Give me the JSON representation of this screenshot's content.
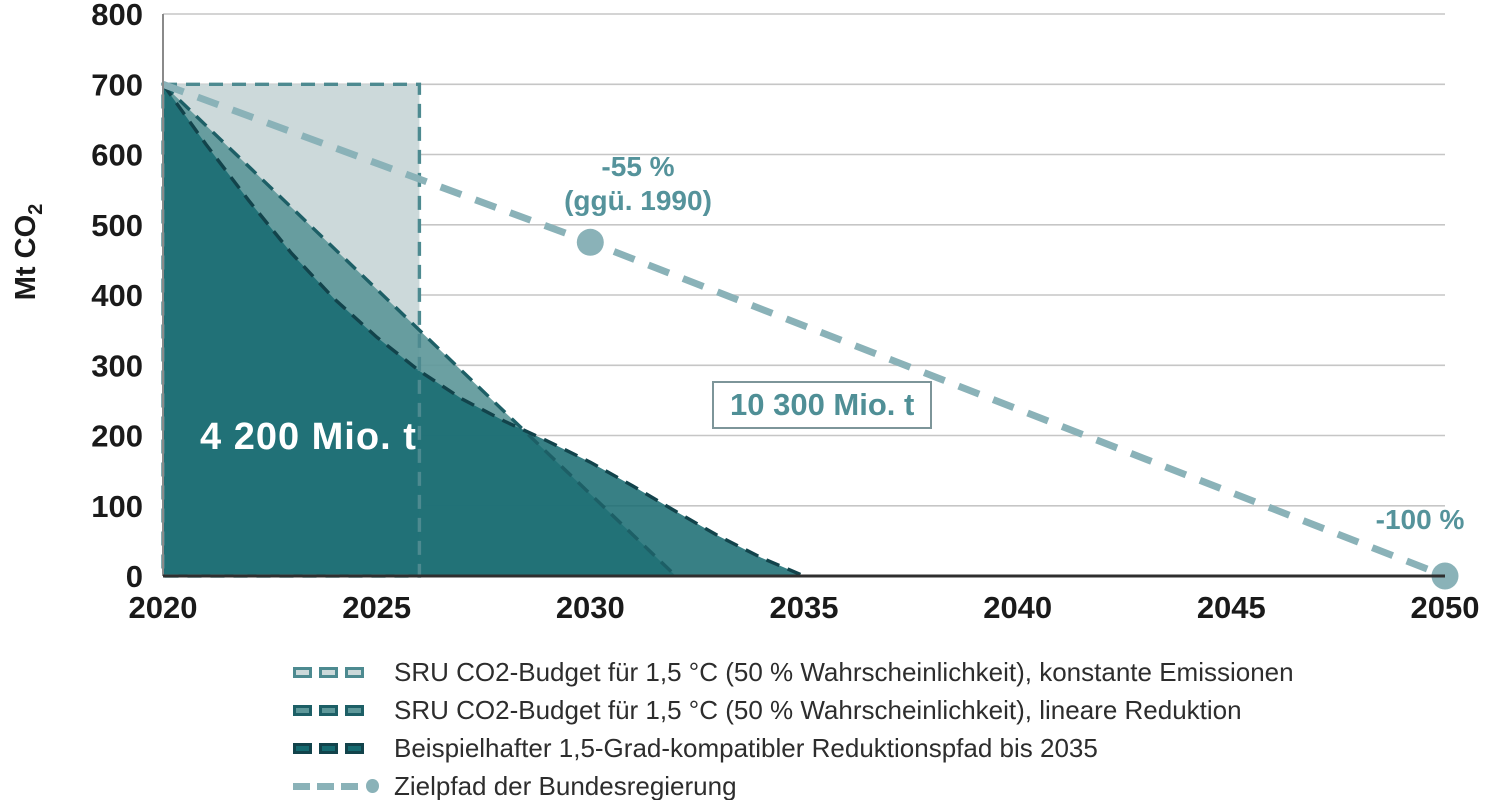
{
  "chart_data": {
    "type": "area",
    "title": "",
    "ylabel": {
      "text": "Mt CO",
      "sub": "2"
    },
    "xlim": [
      2020,
      2050
    ],
    "ylim": [
      0,
      800
    ],
    "xticks": [
      2020,
      2025,
      2030,
      2035,
      2040,
      2045,
      2050
    ],
    "yticks": [
      0,
      100,
      200,
      300,
      400,
      500,
      600,
      700,
      800
    ],
    "grid_color": "#c6c6c6",
    "axis_color_x": "#2f2f2f",
    "axis_color_y": "#8a8a8a",
    "series": [
      {
        "name": "SRU CO2-Budget für 1,5 °C (50 % Wahrscheinlichkeit), konstante Emissionen",
        "kind": "area",
        "closed": true,
        "fill": "#ccd9da",
        "fill_opacity": 1,
        "stroke": "#4d8a90",
        "points": [
          [
            2020,
            700
          ],
          [
            2026,
            700
          ],
          [
            2026,
            0
          ],
          [
            2020,
            0
          ]
        ]
      },
      {
        "name": "SRU CO2-Budget für 1,5 °C (50 % Wahrscheinlichkeit), lineare Reduktion",
        "kind": "area",
        "closed": false,
        "baseline": 0,
        "fill": "#5e989a",
        "fill_opacity": 0.92,
        "stroke": "#1d5f66",
        "points": [
          [
            2020,
            700
          ],
          [
            2032,
            0
          ]
        ]
      },
      {
        "name": "Beispielhafter 1,5-Grad-kompatibler Reduktionspfad bis 2035",
        "kind": "area",
        "closed": false,
        "baseline": 0,
        "fill": "#156a70",
        "fill_opacity": 0.85,
        "stroke": "#12434b",
        "points": [
          [
            2020,
            700
          ],
          [
            2021,
            615
          ],
          [
            2022,
            535
          ],
          [
            2023,
            460
          ],
          [
            2024,
            395
          ],
          [
            2025,
            340
          ],
          [
            2026,
            292
          ],
          [
            2027,
            252
          ],
          [
            2028,
            220
          ],
          [
            2029,
            192
          ],
          [
            2030,
            162
          ],
          [
            2031,
            128
          ],
          [
            2032,
            92
          ],
          [
            2033,
            57
          ],
          [
            2034,
            26
          ],
          [
            2035,
            0
          ]
        ]
      },
      {
        "name": "Zielpfad der Bundesregierung",
        "kind": "line",
        "stroke": "#8ab2b8",
        "points": [
          [
            2020,
            700
          ],
          [
            2030,
            475
          ],
          [
            2050,
            0
          ]
        ],
        "markers": [
          [
            2030,
            475
          ],
          [
            2050,
            0
          ]
        ]
      }
    ]
  },
  "annotations": {
    "budget_left": "4 200 Mio. t",
    "budget_right": "10 300 Mio. t",
    "target_2030_line1": "-55 %",
    "target_2030_line2": "(ggü. 1990)",
    "target_2050": "-100 %"
  },
  "legend": {
    "items": [
      {
        "label": "SRU CO2-Budget für 1,5 °C (50 % Wahrscheinlichkeit), konstante Emissionen",
        "kind": "area",
        "fill": "#ccd9da",
        "stroke": "#4d8a90"
      },
      {
        "label": "SRU CO2-Budget für 1,5 °C (50 % Wahrscheinlichkeit), lineare Reduktion",
        "kind": "area",
        "fill": "#5e989a",
        "stroke": "#1d5f66"
      },
      {
        "label": "Beispielhafter 1,5-Grad-kompatibler Reduktionspfad bis 2035",
        "kind": "area",
        "fill": "#156a70",
        "stroke": "#12434b"
      },
      {
        "label": "Zielpfad der Bundesregierung",
        "kind": "line",
        "fill": "#8ab2b8",
        "stroke": "#8ab2b8"
      }
    ]
  }
}
